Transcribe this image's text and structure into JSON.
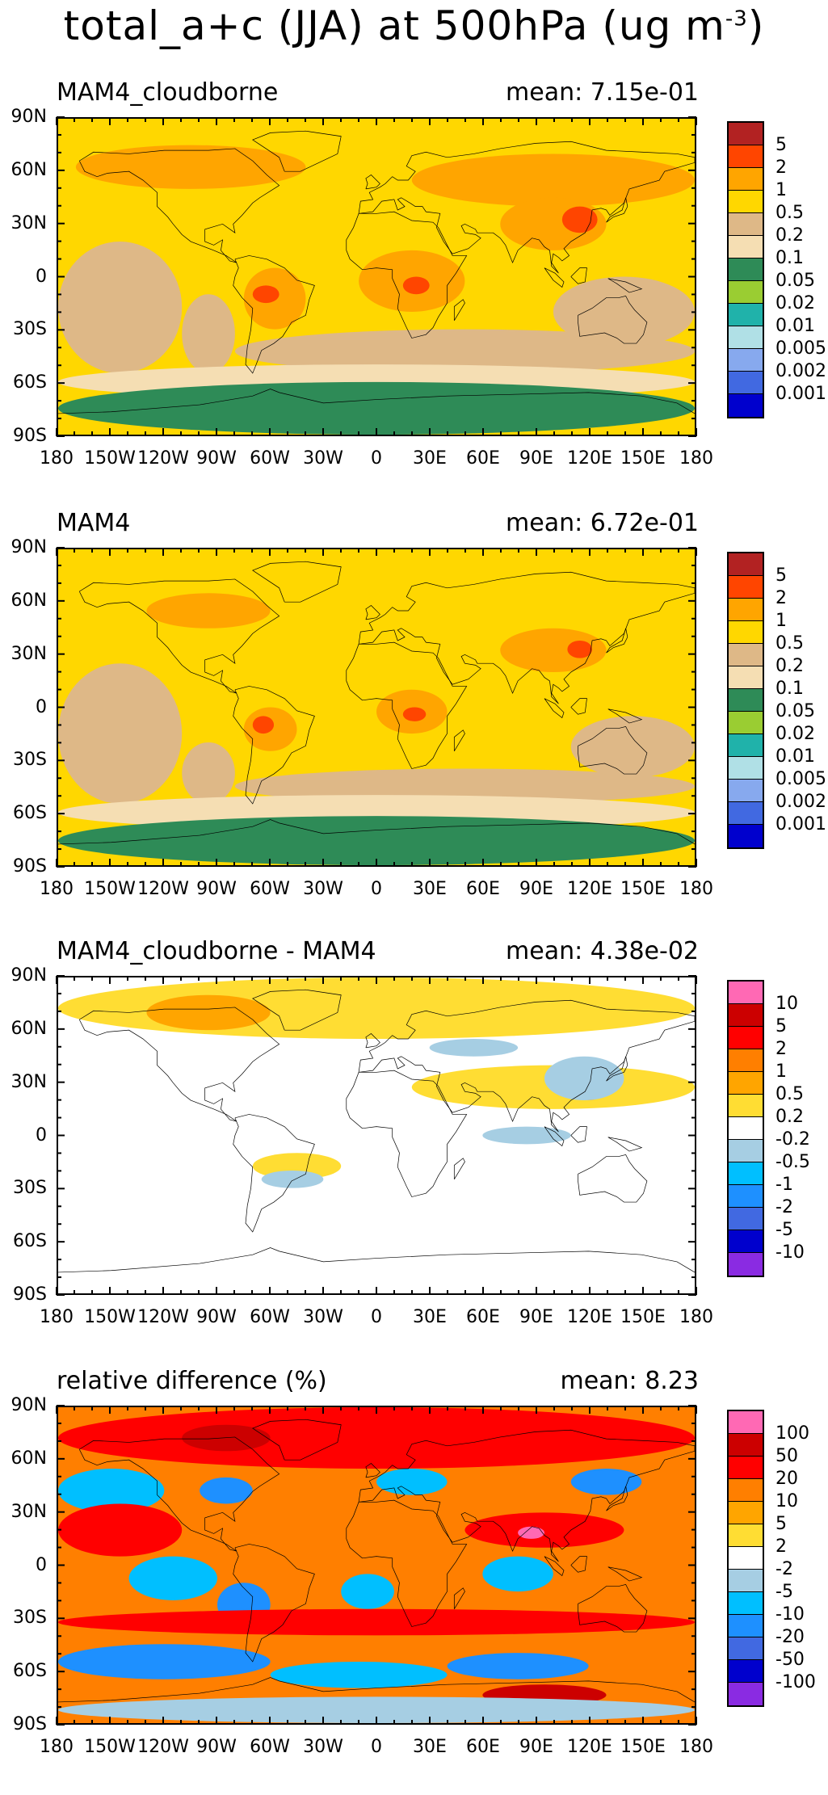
{
  "figure": {
    "title": "total_a+c (JJA) at 500hPa (ug m",
    "title_exp": "-3",
    "title_close": ")"
  },
  "axes": {
    "lat_labels": [
      "90N",
      "60N",
      "30N",
      "0",
      "30S",
      "60S",
      "90S"
    ],
    "lon_labels": [
      "180",
      "150W",
      "120W",
      "90W",
      "60W",
      "30W",
      "0",
      "30E",
      "60E",
      "90E",
      "120E",
      "150E",
      "180"
    ],
    "lat_range": [
      -90,
      90
    ],
    "lon_range": [
      -180,
      180
    ]
  },
  "panels": [
    {
      "title": "MAM4_cloudborne",
      "mean": "mean: 7.15e-01",
      "colorbar": {
        "colors": [
          "#b22222",
          "#ff4500",
          "#ffa500",
          "#ffd700",
          "#deb887",
          "#f5deb3",
          "#2e8b57",
          "#9acd32",
          "#20b2aa",
          "#b0e0e6",
          "#87a9ee",
          "#4169e1",
          "#0000cd"
        ],
        "labels": [
          "5",
          "2",
          "1",
          "0.5",
          "0.2",
          "0.1",
          "0.05",
          "0.02",
          "0.01",
          "0.005",
          "0.002",
          "0.001"
        ]
      },
      "fields": {
        "background": "#ffd700",
        "zones": [
          {
            "level": 4,
            "lat": [
              -55,
              20
            ],
            "lon": [
              -180,
              -110
            ]
          },
          {
            "level": 4,
            "lat": [
              -55,
              -10
            ],
            "lon": [
              -110,
              -80
            ]
          },
          {
            "level": 4,
            "lat": [
              -55,
              -30
            ],
            "lon": [
              -80,
              180
            ]
          },
          {
            "level": 4,
            "lat": [
              -40,
              0
            ],
            "lon": [
              100,
              180
            ]
          },
          {
            "level": 5,
            "lat": [
              -70,
              -50
            ],
            "lon": [
              -180,
              180
            ]
          },
          {
            "level": 6,
            "lat": [
              -90,
              -60
            ],
            "lon": [
              -180,
              180
            ]
          },
          {
            "level": 2,
            "lat": [
              50,
              75
            ],
            "lon": [
              -170,
              -40
            ]
          },
          {
            "level": 2,
            "lat": [
              40,
              70
            ],
            "lon": [
              20,
              180
            ]
          },
          {
            "level": 2,
            "lat": [
              -30,
              5
            ],
            "lon": [
              -75,
              -40
            ]
          },
          {
            "level": 2,
            "lat": [
              -20,
              15
            ],
            "lon": [
              -10,
              50
            ]
          },
          {
            "level": 2,
            "lat": [
              15,
              45
            ],
            "lon": [
              70,
              130
            ]
          },
          {
            "level": 1,
            "lat": [
              -15,
              -5
            ],
            "lon": [
              -70,
              -55
            ]
          },
          {
            "level": 1,
            "lat": [
              -10,
              0
            ],
            "lon": [
              15,
              30
            ]
          },
          {
            "level": 1,
            "lat": [
              25,
              40
            ],
            "lon": [
              105,
              125
            ]
          }
        ]
      }
    },
    {
      "title": "MAM4",
      "mean": "mean: 6.72e-01",
      "colorbar": {
        "colors": [
          "#b22222",
          "#ff4500",
          "#ffa500",
          "#ffd700",
          "#deb887",
          "#f5deb3",
          "#2e8b57",
          "#9acd32",
          "#20b2aa",
          "#b0e0e6",
          "#87a9ee",
          "#4169e1",
          "#0000cd"
        ],
        "labels": [
          "5",
          "2",
          "1",
          "0.5",
          "0.2",
          "0.1",
          "0.05",
          "0.02",
          "0.01",
          "0.005",
          "0.002",
          "0.001"
        ]
      },
      "fields": {
        "background": "#ffd700",
        "zones": [
          {
            "level": 4,
            "lat": [
              -55,
              25
            ],
            "lon": [
              -180,
              -110
            ]
          },
          {
            "level": 4,
            "lat": [
              -55,
              -20
            ],
            "lon": [
              -110,
              -80
            ]
          },
          {
            "level": 4,
            "lat": [
              -55,
              -35
            ],
            "lon": [
              -80,
              180
            ]
          },
          {
            "level": 4,
            "lat": [
              -40,
              -5
            ],
            "lon": [
              110,
              180
            ]
          },
          {
            "level": 5,
            "lat": [
              -70,
              -50
            ],
            "lon": [
              -180,
              180
            ]
          },
          {
            "level": 6,
            "lat": [
              -90,
              -62
            ],
            "lon": [
              -180,
              180
            ]
          },
          {
            "level": 2,
            "lat": [
              45,
              65
            ],
            "lon": [
              -130,
              -60
            ]
          },
          {
            "level": 2,
            "lat": [
              -25,
              0
            ],
            "lon": [
              -75,
              -45
            ]
          },
          {
            "level": 2,
            "lat": [
              -15,
              10
            ],
            "lon": [
              0,
              40
            ]
          },
          {
            "level": 2,
            "lat": [
              20,
              45
            ],
            "lon": [
              70,
              130
            ]
          },
          {
            "level": 1,
            "lat": [
              -15,
              -5
            ],
            "lon": [
              -70,
              -58
            ]
          },
          {
            "level": 1,
            "lat": [
              -8,
              0
            ],
            "lon": [
              15,
              28
            ]
          },
          {
            "level": 1,
            "lat": [
              28,
              38
            ],
            "lon": [
              108,
              122
            ]
          }
        ]
      }
    },
    {
      "title": "MAM4_cloudborne - MAM4",
      "mean": "mean: 4.38e-02",
      "colorbar": {
        "colors": [
          "#ff69b4",
          "#cc0000",
          "#ff0000",
          "#ff7f00",
          "#ffa500",
          "#ffdd33",
          "#ffffff",
          "#a6cee3",
          "#00bfff",
          "#1e90ff",
          "#4169e1",
          "#0000cd",
          "#8a2be2"
        ],
        "labels": [
          "10",
          "5",
          "2",
          "1",
          "0.5",
          "0.2",
          "-0.2",
          "-0.5",
          "-1",
          "-2",
          "-5",
          "-10"
        ]
      },
      "fields": {
        "background": "#ffffff",
        "zones": [
          {
            "level": 5,
            "lat": [
              55,
              90
            ],
            "lon": [
              -180,
              180
            ]
          },
          {
            "level": 4,
            "lat": [
              60,
              80
            ],
            "lon": [
              -130,
              -60
            ]
          },
          {
            "level": 5,
            "lat": [
              15,
              40
            ],
            "lon": [
              20,
              180
            ]
          },
          {
            "level": 5,
            "lat": [
              -25,
              -10
            ],
            "lon": [
              -70,
              -20
            ]
          },
          {
            "level": 4,
            "lat": [
              20,
              35
            ],
            "lon": [
              110,
              130
            ]
          },
          {
            "level": 7,
            "lat": [
              20,
              45
            ],
            "lon": [
              95,
              140
            ]
          },
          {
            "level": 7,
            "lat": [
              -30,
              -20
            ],
            "lon": [
              -65,
              -30
            ]
          },
          {
            "level": 7,
            "lat": [
              -5,
              5
            ],
            "lon": [
              60,
              110
            ]
          },
          {
            "level": 7,
            "lat": [
              45,
              55
            ],
            "lon": [
              30,
              80
            ]
          }
        ]
      }
    },
    {
      "title": "relative difference (%)",
      "mean": "mean:  8.23",
      "colorbar": {
        "colors": [
          "#ff69b4",
          "#cc0000",
          "#ff0000",
          "#ff7f00",
          "#ffa500",
          "#ffdd33",
          "#ffffff",
          "#a6cee3",
          "#00bfff",
          "#1e90ff",
          "#4169e1",
          "#0000cd",
          "#8a2be2"
        ],
        "labels": [
          "100",
          "50",
          "20",
          "10",
          "5",
          "2",
          "-2",
          "-5",
          "-10",
          "-20",
          "-50",
          "-100"
        ]
      },
      "fields": {
        "background": "#ff7f00",
        "zones": [
          {
            "level": 2,
            "lat": [
              55,
              90
            ],
            "lon": [
              -180,
              180
            ]
          },
          {
            "level": 1,
            "lat": [
              65,
              80
            ],
            "lon": [
              -110,
              -60
            ]
          },
          {
            "level": 8,
            "lat": [
              30,
              55
            ],
            "lon": [
              -180,
              -120
            ]
          },
          {
            "level": 9,
            "lat": [
              35,
              50
            ],
            "lon": [
              -100,
              -70
            ]
          },
          {
            "level": 8,
            "lat": [
              40,
              55
            ],
            "lon": [
              0,
              40
            ]
          },
          {
            "level": 9,
            "lat": [
              40,
              55
            ],
            "lon": [
              110,
              150
            ]
          },
          {
            "level": 2,
            "lat": [
              5,
              35
            ],
            "lon": [
              -180,
              -110
            ]
          },
          {
            "level": 2,
            "lat": [
              10,
              30
            ],
            "lon": [
              50,
              140
            ]
          },
          {
            "level": 0,
            "lat": [
              15,
              22
            ],
            "lon": [
              80,
              95
            ]
          },
          {
            "level": 8,
            "lat": [
              -20,
              5
            ],
            "lon": [
              -140,
              -90
            ]
          },
          {
            "level": 9,
            "lat": [
              -35,
              -10
            ],
            "lon": [
              -90,
              -60
            ]
          },
          {
            "level": 8,
            "lat": [
              -25,
              -5
            ],
            "lon": [
              -20,
              10
            ]
          },
          {
            "level": 8,
            "lat": [
              -15,
              5
            ],
            "lon": [
              60,
              100
            ]
          },
          {
            "level": 2,
            "lat": [
              -40,
              -25
            ],
            "lon": [
              -180,
              180
            ]
          },
          {
            "level": 9,
            "lat": [
              -65,
              -45
            ],
            "lon": [
              -180,
              -60
            ]
          },
          {
            "level": 8,
            "lat": [
              -70,
              -55
            ],
            "lon": [
              -60,
              40
            ]
          },
          {
            "level": 9,
            "lat": [
              -65,
              -50
            ],
            "lon": [
              40,
              120
            ]
          },
          {
            "level": 1,
            "lat": [
              -80,
              -68
            ],
            "lon": [
              60,
              130
            ]
          },
          {
            "level": 7,
            "lat": [
              -90,
              -75
            ],
            "lon": [
              -180,
              180
            ]
          }
        ]
      }
    }
  ]
}
